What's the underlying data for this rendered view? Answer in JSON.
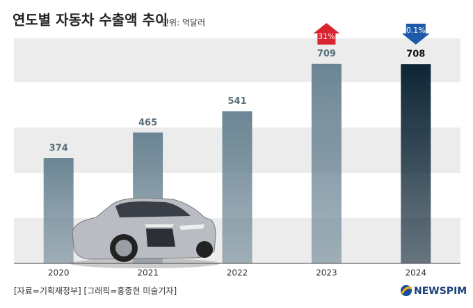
{
  "chart_data": {
    "type": "bar",
    "title": "연도별 자동차 수출액 추이",
    "subtitle": "단위: 억달러",
    "categories": [
      "2020",
      "2021",
      "2022",
      "2023",
      "2024"
    ],
    "values": [
      374,
      465,
      541,
      709,
      708
    ],
    "colors": [
      "#6c8594",
      "#6c8594",
      "#6c8594",
      "#6c8594",
      "#0d2535"
    ],
    "ylim": [
      0,
      800
    ],
    "change": {
      "values": [
        null,
        null,
        null,
        31,
        -0.1
      ],
      "value_labels": [
        null,
        null,
        null,
        "31%",
        "0.1%"
      ],
      "colors": [
        "#d9232e",
        "#1d5aa8"
      ]
    }
  },
  "source": "[자료=기획재정부] [그래픽=홍종현 미술기자]",
  "logo": "NEWSPIM"
}
